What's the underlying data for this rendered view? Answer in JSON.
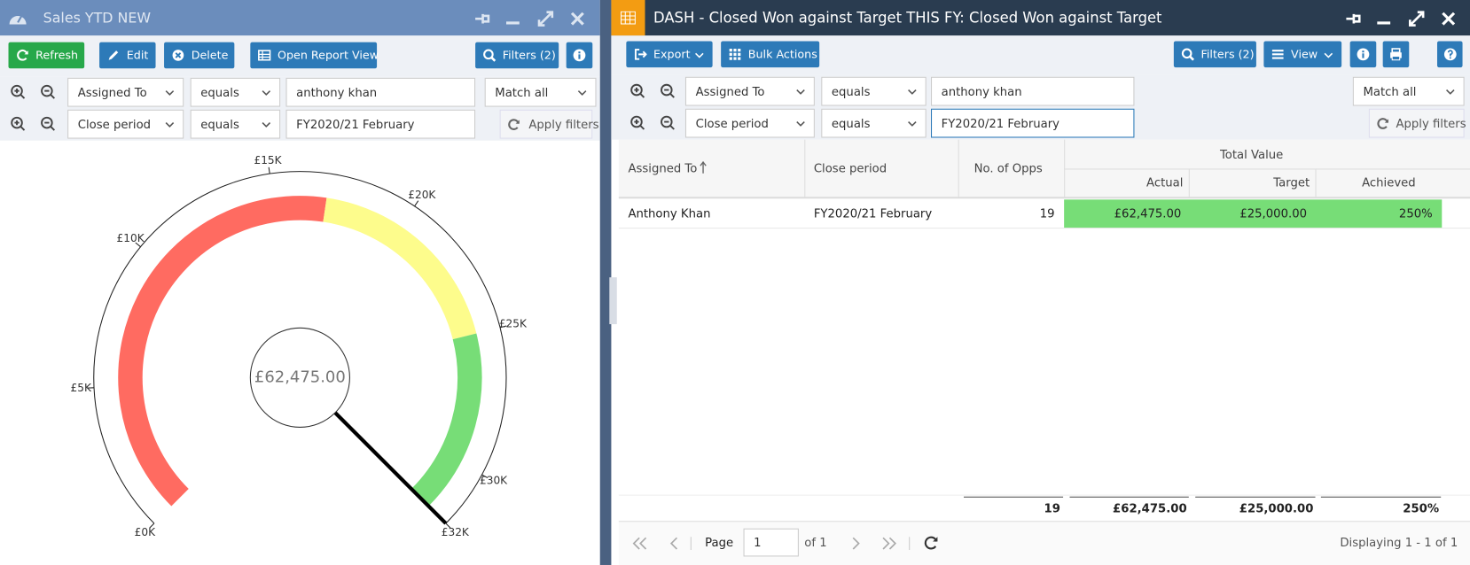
{
  "left_panel": {
    "title": "Sales YTD NEW",
    "toolbar": [
      "Refresh",
      "Edit",
      "Delete",
      "Open Report View",
      "Filters (2)"
    ],
    "filters": [
      {
        "field": "Assigned To",
        "operator": "equals",
        "value": "anthony khan"
      },
      {
        "field": "Close period",
        "operator": "equals",
        "value": "FY2020/21 February"
      }
    ],
    "match": "Match all",
    "apply": "Apply filters"
  },
  "chart_data": {
    "type": "gauge",
    "value": 62475,
    "value_label": "£62,475.00",
    "ylim": [
      0,
      32000
    ],
    "yticks": [
      {
        "value": 0,
        "label": "£0K"
      },
      {
        "value": 5000,
        "label": "£5K"
      },
      {
        "value": 10000,
        "label": "£10K"
      },
      {
        "value": 15000,
        "label": "£15K"
      },
      {
        "value": 20000,
        "label": "£20K"
      },
      {
        "value": 25000,
        "label": "£25K"
      },
      {
        "value": 30000,
        "label": "£30K"
      },
      {
        "value": 32000,
        "label": "£32K"
      }
    ],
    "bands": [
      {
        "from": 0,
        "to": 17000,
        "color": "#ff6b61"
      },
      {
        "from": 17000,
        "to": 25000,
        "color": "#fdfc8c"
      },
      {
        "from": 25000,
        "to": 32000,
        "color": "#77dd77"
      }
    ]
  },
  "right_panel": {
    "title": "DASH - Closed Won against Target THIS FY: Closed Won against Target",
    "toolbar": [
      "Export",
      "Bulk Actions",
      "Filters (2)",
      "View"
    ],
    "filters": [
      {
        "field": "Assigned To",
        "operator": "equals",
        "value": "anthony khan"
      },
      {
        "field": "Close period",
        "operator": "equals",
        "value": "FY2020/21 February"
      }
    ],
    "match": "Match all",
    "apply": "Apply filters",
    "table": {
      "columns": [
        "Assigned To",
        "Close period",
        "No. of Opps"
      ],
      "group": "Total Value",
      "subcolumns": [
        "Actual",
        "Target",
        "Achieved"
      ],
      "rows": [
        [
          "Anthony Khan",
          "FY2020/21 February",
          "19",
          "£62,475.00",
          "£25,000.00",
          "250%"
        ]
      ],
      "totals": [
        "19",
        "£62,475.00",
        "£25,000.00",
        "250%"
      ]
    },
    "pager": {
      "page_label": "Page",
      "page": "1",
      "of": "of 1",
      "status": "Displaying 1 - 1 of 1"
    }
  }
}
